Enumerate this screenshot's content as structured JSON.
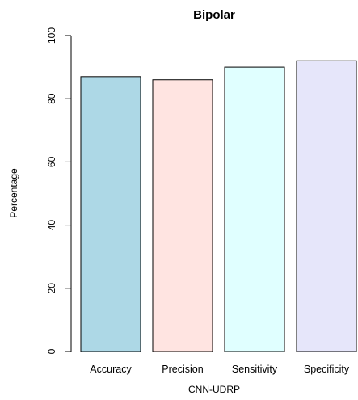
{
  "chart_data": {
    "type": "bar",
    "title": "Bipolar",
    "xlabel": "CNN-UDRP",
    "ylabel": "Percentage",
    "categories": [
      "Accuracy",
      "Precision",
      "Sensitivity",
      "Specificity"
    ],
    "values": [
      87,
      86,
      90,
      92
    ],
    "ylim": [
      0,
      100
    ],
    "yticks": [
      "0",
      "20",
      "40",
      "60",
      "80",
      "100"
    ],
    "colors": [
      "#add8e6",
      "#ffe4e1",
      "#e0ffff",
      "#e6e6fa"
    ],
    "edge_color": "#000000",
    "grid": false,
    "legend": "none"
  }
}
